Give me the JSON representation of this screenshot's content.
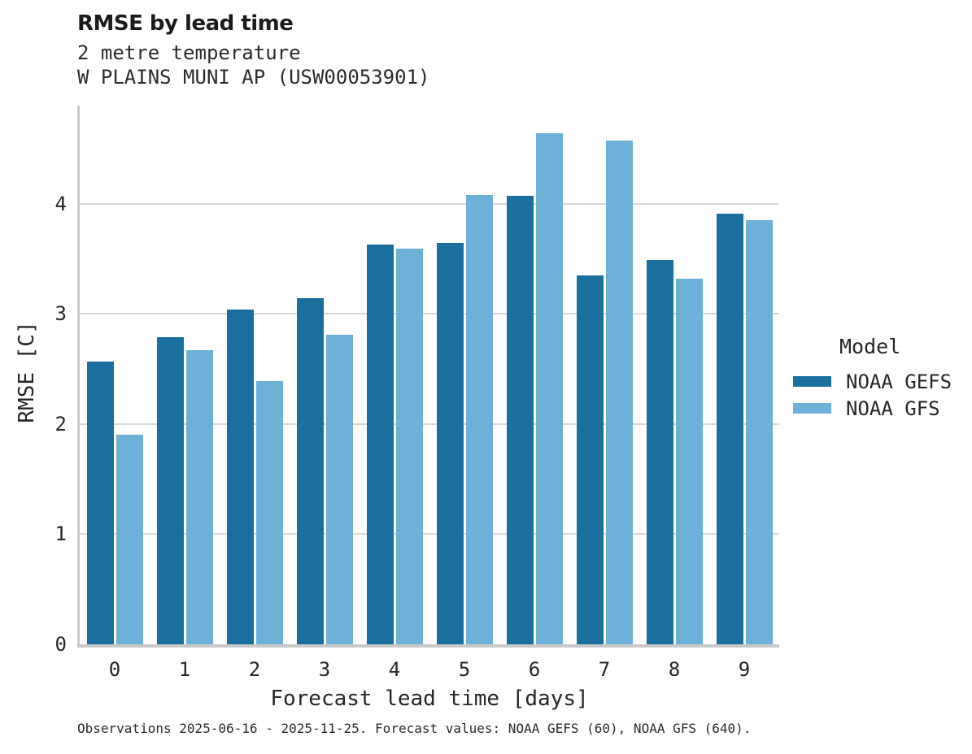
{
  "title": "RMSE by lead time",
  "subtitle_line1": "2 metre temperature",
  "subtitle_line2": "W PLAINS MUNI AP (USW00053901)",
  "footer": "Observations 2025-06-16 - 2025-11-25. Forecast values: NOAA GEFS (60), NOAA GFS (640).",
  "legend": {
    "title": "Model",
    "entries": [
      {
        "label": "NOAA GEFS",
        "color": "#1b6f9e"
      },
      {
        "label": "NOAA GFS",
        "color": "#6db1d9"
      }
    ]
  },
  "chart_data": {
    "type": "bar",
    "title": "RMSE by lead time",
    "subtitle": [
      "2 metre temperature",
      "W PLAINS MUNI AP (USW00053901)"
    ],
    "categories": [
      "0",
      "1",
      "2",
      "3",
      "4",
      "5",
      "6",
      "7",
      "8",
      "9"
    ],
    "series": [
      {
        "name": "NOAA GEFS",
        "color": "#1b6f9e",
        "values": [
          2.57,
          2.79,
          3.04,
          3.14,
          3.63,
          3.64,
          4.07,
          3.35,
          3.49,
          3.91
        ]
      },
      {
        "name": "NOAA GFS",
        "color": "#6db1d9",
        "values": [
          1.9,
          2.67,
          2.39,
          2.81,
          3.59,
          4.08,
          4.64,
          4.57,
          3.32,
          3.85
        ]
      }
    ],
    "xlabel": "Forecast lead time [days]",
    "ylabel": "RMSE [C]",
    "ylim": [
      0,
      4.89
    ],
    "yticks": [
      "0",
      "1",
      "2",
      "3",
      "4"
    ],
    "grid": true,
    "legend_position": "right",
    "annotation": "Observations 2025-06-16 - 2025-11-25. Forecast values: NOAA GEFS (60), NOAA GFS (640)."
  },
  "colors": {
    "gridline": "#d9d9d9",
    "axis": "#c9c9c9",
    "title_text": "#1a1a1a",
    "body_text": "#262626"
  }
}
